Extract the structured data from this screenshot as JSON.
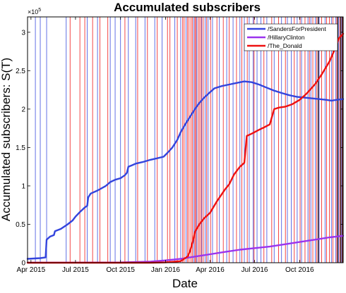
{
  "chart_data": {
    "type": "line",
    "title": "Accumulated subscribers",
    "xlabel": "Date",
    "ylabel": "Accumulated subscribers: S(T)",
    "y_exponent_label": "×10",
    "y_exponent_power": "5",
    "xlim": [
      "2015-03-25",
      "2016-12-29"
    ],
    "ylim": [
      0,
      320000
    ],
    "x_ticks": [
      {
        "date": "2015-04-01",
        "label": "Apr 2015"
      },
      {
        "date": "2015-07-01",
        "label": "Jul 2015"
      },
      {
        "date": "2015-10-01",
        "label": "Oct 2015"
      },
      {
        "date": "2016-01-01",
        "label": "Jan 2016"
      },
      {
        "date": "2016-04-01",
        "label": "Apr 2016"
      },
      {
        "date": "2016-07-01",
        "label": "Jul 2016"
      },
      {
        "date": "2016-10-01",
        "label": "Oct 2016"
      }
    ],
    "y_ticks": [
      {
        "value": 0,
        "label": "0"
      },
      {
        "value": 50000,
        "label": "0.5"
      },
      {
        "value": 100000,
        "label": "1"
      },
      {
        "value": 150000,
        "label": "1.5"
      },
      {
        "value": 200000,
        "label": "2"
      },
      {
        "value": 250000,
        "label": "2.5"
      },
      {
        "value": 300000,
        "label": "3"
      }
    ],
    "legend_position": "top-right",
    "grid": false,
    "series": [
      {
        "name": "/SandersForPresident",
        "color": "#3344dd",
        "points": [
          [
            "2015-03-25",
            5000
          ],
          [
            "2015-04-20",
            6000
          ],
          [
            "2015-05-01",
            7000
          ],
          [
            "2015-05-03",
            30000
          ],
          [
            "2015-05-10",
            34000
          ],
          [
            "2015-05-18",
            36000
          ],
          [
            "2015-05-20",
            41000
          ],
          [
            "2015-06-01",
            44000
          ],
          [
            "2015-06-15",
            50000
          ],
          [
            "2015-06-25",
            55000
          ],
          [
            "2015-07-01",
            60000
          ],
          [
            "2015-07-10",
            66000
          ],
          [
            "2015-07-20",
            72000
          ],
          [
            "2015-07-25",
            74000
          ],
          [
            "2015-07-27",
            85000
          ],
          [
            "2015-08-01",
            90000
          ],
          [
            "2015-08-15",
            94000
          ],
          [
            "2015-09-01",
            100000
          ],
          [
            "2015-09-10",
            105000
          ],
          [
            "2015-09-20",
            108000
          ],
          [
            "2015-10-01",
            110000
          ],
          [
            "2015-10-10",
            114000
          ],
          [
            "2015-10-14",
            117000
          ],
          [
            "2015-10-17",
            125000
          ],
          [
            "2015-10-25",
            127000
          ],
          [
            "2015-11-01",
            129000
          ],
          [
            "2015-11-15",
            131000
          ],
          [
            "2015-12-01",
            134000
          ],
          [
            "2015-12-15",
            136000
          ],
          [
            "2015-12-28",
            138000
          ],
          [
            "2016-01-05",
            143000
          ],
          [
            "2016-01-15",
            150000
          ],
          [
            "2016-01-25",
            160000
          ],
          [
            "2016-02-01",
            170000
          ],
          [
            "2016-02-10",
            180000
          ],
          [
            "2016-02-20",
            190000
          ],
          [
            "2016-03-01",
            200000
          ],
          [
            "2016-03-10",
            208000
          ],
          [
            "2016-03-20",
            215000
          ],
          [
            "2016-04-01",
            222000
          ],
          [
            "2016-04-10",
            227000
          ],
          [
            "2016-04-25",
            230000
          ],
          [
            "2016-05-10",
            232000
          ],
          [
            "2016-05-25",
            234000
          ],
          [
            "2016-06-10",
            236000
          ],
          [
            "2016-06-25",
            235000
          ],
          [
            "2016-07-10",
            232000
          ],
          [
            "2016-07-25",
            228000
          ],
          [
            "2016-08-10",
            224000
          ],
          [
            "2016-08-25",
            221000
          ],
          [
            "2016-09-10",
            218000
          ],
          [
            "2016-09-25",
            216000
          ],
          [
            "2016-10-10",
            215000
          ],
          [
            "2016-10-25",
            214000
          ],
          [
            "2016-11-10",
            213000
          ],
          [
            "2016-11-25",
            212000
          ],
          [
            "2016-12-05",
            211000
          ],
          [
            "2016-12-15",
            212000
          ],
          [
            "2016-12-29",
            213000
          ]
        ]
      },
      {
        "name": "/HillaryClinton",
        "color": "#9a33ee",
        "points": [
          [
            "2015-03-25",
            100
          ],
          [
            "2015-07-01",
            200
          ],
          [
            "2015-10-01",
            400
          ],
          [
            "2015-12-01",
            1500
          ],
          [
            "2016-01-01",
            3000
          ],
          [
            "2016-02-01",
            5000
          ],
          [
            "2016-03-01",
            8000
          ],
          [
            "2016-04-01",
            11000
          ],
          [
            "2016-05-01",
            14000
          ],
          [
            "2016-06-01",
            17000
          ],
          [
            "2016-07-01",
            19000
          ],
          [
            "2016-08-01",
            21000
          ],
          [
            "2016-09-01",
            24000
          ],
          [
            "2016-10-01",
            27000
          ],
          [
            "2016-11-01",
            30000
          ],
          [
            "2016-12-01",
            33000
          ],
          [
            "2016-12-29",
            35000
          ]
        ]
      },
      {
        "name": "/The_Donald",
        "color": "#ee1111",
        "points": [
          [
            "2015-03-25",
            0
          ],
          [
            "2015-12-01",
            0
          ],
          [
            "2016-01-01",
            500
          ],
          [
            "2016-02-01",
            2000
          ],
          [
            "2016-02-15",
            8000
          ],
          [
            "2016-02-20",
            15000
          ],
          [
            "2016-02-26",
            28000
          ],
          [
            "2016-03-01",
            40000
          ],
          [
            "2016-03-10",
            50000
          ],
          [
            "2016-03-20",
            58000
          ],
          [
            "2016-04-01",
            65000
          ],
          [
            "2016-04-15",
            80000
          ],
          [
            "2016-05-01",
            95000
          ],
          [
            "2016-05-10",
            102000
          ],
          [
            "2016-05-20",
            115000
          ],
          [
            "2016-06-01",
            125000
          ],
          [
            "2016-06-10",
            130000
          ],
          [
            "2016-06-15",
            165000
          ],
          [
            "2016-06-25",
            168000
          ],
          [
            "2016-07-10",
            173000
          ],
          [
            "2016-07-20",
            176000
          ],
          [
            "2016-08-01",
            180000
          ],
          [
            "2016-08-10",
            200000
          ],
          [
            "2016-08-20",
            202000
          ],
          [
            "2016-09-01",
            203000
          ],
          [
            "2016-09-15",
            206000
          ],
          [
            "2016-10-01",
            212000
          ],
          [
            "2016-10-15",
            220000
          ],
          [
            "2016-11-01",
            232000
          ],
          [
            "2016-11-15",
            245000
          ],
          [
            "2016-12-01",
            262000
          ],
          [
            "2016-12-10",
            275000
          ],
          [
            "2016-12-20",
            292000
          ],
          [
            "2016-12-29",
            298000
          ]
        ]
      }
    ],
    "event_lines": {
      "blue": [
        "2015-04-10",
        "2015-04-20",
        "2015-05-03",
        "2015-06-12",
        "2015-07-25",
        "2015-08-15",
        "2015-09-10",
        "2015-09-20",
        "2015-10-01",
        "2015-10-17",
        "2015-11-01",
        "2015-11-20",
        "2015-12-10",
        "2015-12-25",
        "2016-01-20",
        "2016-02-01",
        "2016-02-12",
        "2016-02-28",
        "2016-03-05",
        "2016-03-15",
        "2016-03-22",
        "2016-03-28",
        "2016-04-06",
        "2016-04-20",
        "2016-05-05",
        "2016-05-18",
        "2016-06-01",
        "2016-06-10",
        "2016-06-20",
        "2016-06-28",
        "2016-07-06",
        "2016-07-14",
        "2016-07-26",
        "2016-08-10",
        "2016-08-25",
        "2016-09-06",
        "2016-09-14",
        "2016-09-26",
        "2016-10-05",
        "2016-10-18",
        "2016-10-24",
        "2016-11-02",
        "2016-11-10",
        "2016-11-22",
        "2016-12-05",
        "2016-12-14",
        "2016-12-20",
        "2016-12-26"
      ],
      "red": [
        "2015-06-20",
        "2015-07-10",
        "2015-07-20",
        "2015-08-05",
        "2015-08-20",
        "2015-09-05",
        "2015-10-10",
        "2015-11-05",
        "2015-11-25",
        "2015-12-15",
        "2016-01-05",
        "2016-01-10",
        "2016-01-25",
        "2016-02-05",
        "2016-02-08",
        "2016-02-15",
        "2016-02-18",
        "2016-02-22",
        "2016-02-25",
        "2016-03-01",
        "2016-03-03",
        "2016-03-08",
        "2016-03-11",
        "2016-03-14",
        "2016-03-18",
        "2016-03-25",
        "2016-04-02",
        "2016-04-15",
        "2016-04-28",
        "2016-05-10",
        "2016-05-25",
        "2016-06-05",
        "2016-06-16",
        "2016-06-30",
        "2016-07-20",
        "2016-08-05",
        "2016-08-19",
        "2016-09-02",
        "2016-09-20",
        "2016-10-02",
        "2016-10-12",
        "2016-10-21",
        "2016-10-28",
        "2016-11-05",
        "2016-11-08",
        "2016-11-15",
        "2016-11-25",
        "2016-12-01",
        "2016-12-08",
        "2016-12-16",
        "2016-12-22",
        "2016-12-27"
      ],
      "black": [
        "2016-11-08",
        "2016-12-18",
        "2016-12-24",
        "2016-12-28"
      ]
    }
  }
}
